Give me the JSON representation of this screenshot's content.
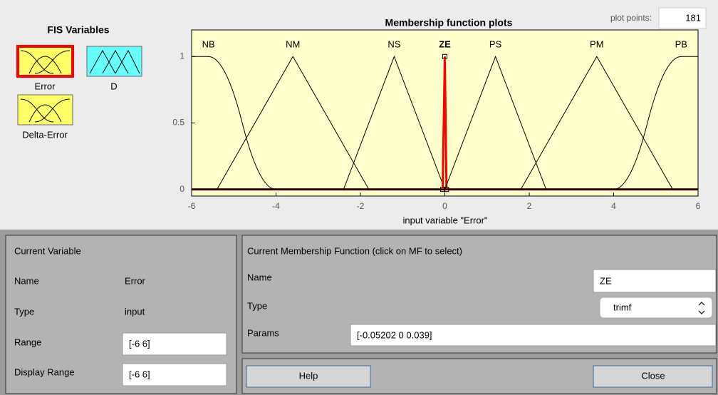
{
  "fis_variables": {
    "title": "FIS Variables",
    "variables": [
      {
        "label": "Error",
        "color": "#ffff66",
        "selected": true
      },
      {
        "label": "D",
        "color": "#66ffff",
        "selected": false
      },
      {
        "label": "Delta-Error",
        "color": "#ffff66",
        "selected": false
      }
    ]
  },
  "plot_points": {
    "label": "plot points:",
    "value": 181
  },
  "chart_data": {
    "type": "line",
    "title": "Membership function plots",
    "xlabel": "input variable \"Error\"",
    "xlim": [
      -6,
      6
    ],
    "ylim": [
      -0.05,
      1.2
    ],
    "xticks": [
      -6,
      -4,
      -2,
      0,
      2,
      4,
      6
    ],
    "yticks": [
      0,
      0.5,
      1
    ],
    "background": "#ffffcc",
    "color": "#000000",
    "selected": 3,
    "selected_color": "#ff0000",
    "mfs": [
      {
        "name": "NB",
        "type": "zmf",
        "params": [
          -5.6,
          -4
        ]
      },
      {
        "name": "NM",
        "type": "trimf",
        "params": [
          -5.4,
          -3.6,
          -1.8
        ]
      },
      {
        "name": "NS",
        "type": "trimf",
        "params": [
          -2.4,
          -1.2,
          0
        ]
      },
      {
        "name": "ZE",
        "type": "trimf",
        "params": [
          -0.05202,
          0,
          0.039
        ]
      },
      {
        "name": "PS",
        "type": "trimf",
        "params": [
          0,
          1.2,
          2.4
        ]
      },
      {
        "name": "PM",
        "type": "trimf",
        "params": [
          1.8,
          3.6,
          5.4
        ]
      },
      {
        "name": "PB",
        "type": "smf",
        "params": [
          4,
          5.6
        ]
      }
    ]
  },
  "current_variable": {
    "title": "Current Variable",
    "name_label": "Name",
    "name": "Error",
    "type_label": "Type",
    "type": "input",
    "range_label": "Range",
    "range": "[-6 6]",
    "display_range_label": "Display Range",
    "display_range": "[-6 6]"
  },
  "current_mf": {
    "title": "Current Membership Function (click on MF to select)",
    "name_label": "Name",
    "name": "ZE",
    "type_label": "Type",
    "type": "trimf",
    "params_label": "Params",
    "params": "[-0.05202 0 0.039]"
  },
  "buttons": [
    "Help",
    "Close"
  ]
}
